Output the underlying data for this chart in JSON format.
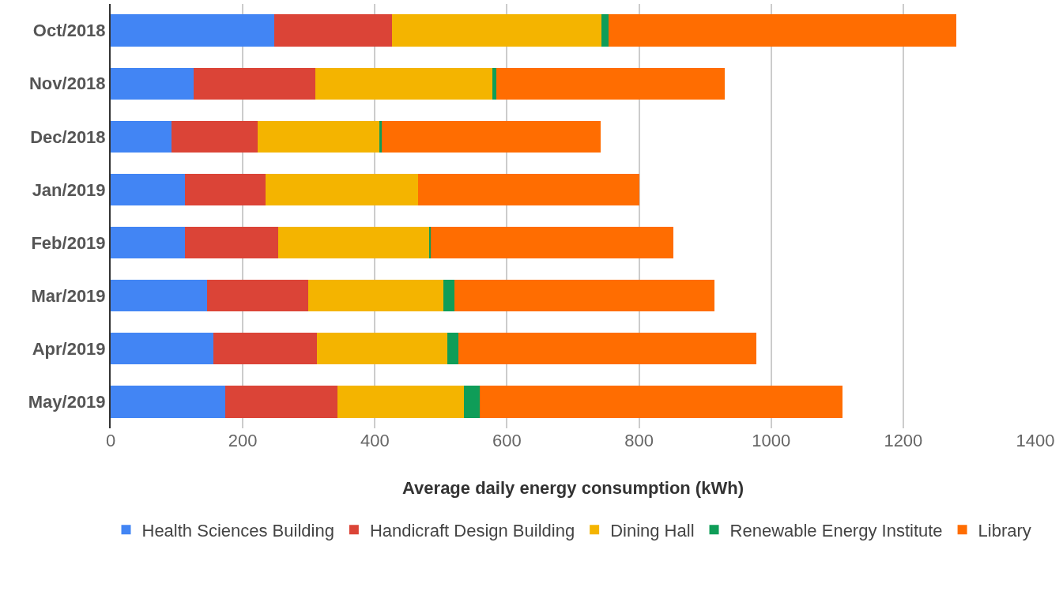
{
  "chart_data": {
    "type": "bar",
    "orientation": "horizontal",
    "stacked": true,
    "xlabel": "Average daily energy consumption (kWh)",
    "categories": [
      "Oct/2018",
      "Nov/2018",
      "Dec/2018",
      "Jan/2019",
      "Feb/2019",
      "Mar/2019",
      "Apr/2019",
      "May/2019"
    ],
    "series": [
      {
        "name": "Health Sciences Building",
        "color": "#4285f4",
        "values": [
          248,
          126,
          92,
          113,
          113,
          146,
          155,
          174
        ]
      },
      {
        "name": "Handicraft Design Building",
        "color": "#db4437",
        "values": [
          178,
          184,
          131,
          121,
          141,
          153,
          157,
          169
        ]
      },
      {
        "name": "Dining Hall",
        "color": "#f4b400",
        "values": [
          317,
          268,
          185,
          232,
          228,
          205,
          198,
          192
        ]
      },
      {
        "name": "Renewable Energy Institute",
        "color": "#0f9d58",
        "values": [
          11,
          6,
          2,
          0,
          3,
          17,
          17,
          24
        ]
      },
      {
        "name": "Library",
        "color": "#ff6d01",
        "values": [
          526,
          346,
          332,
          334,
          367,
          393,
          451,
          549
        ]
      }
    ],
    "xlim": [
      0,
      1400
    ],
    "xticks": [
      0,
      200,
      400,
      600,
      800,
      1000,
      1200,
      1400
    ],
    "grid": "x",
    "legend": "bottom"
  }
}
